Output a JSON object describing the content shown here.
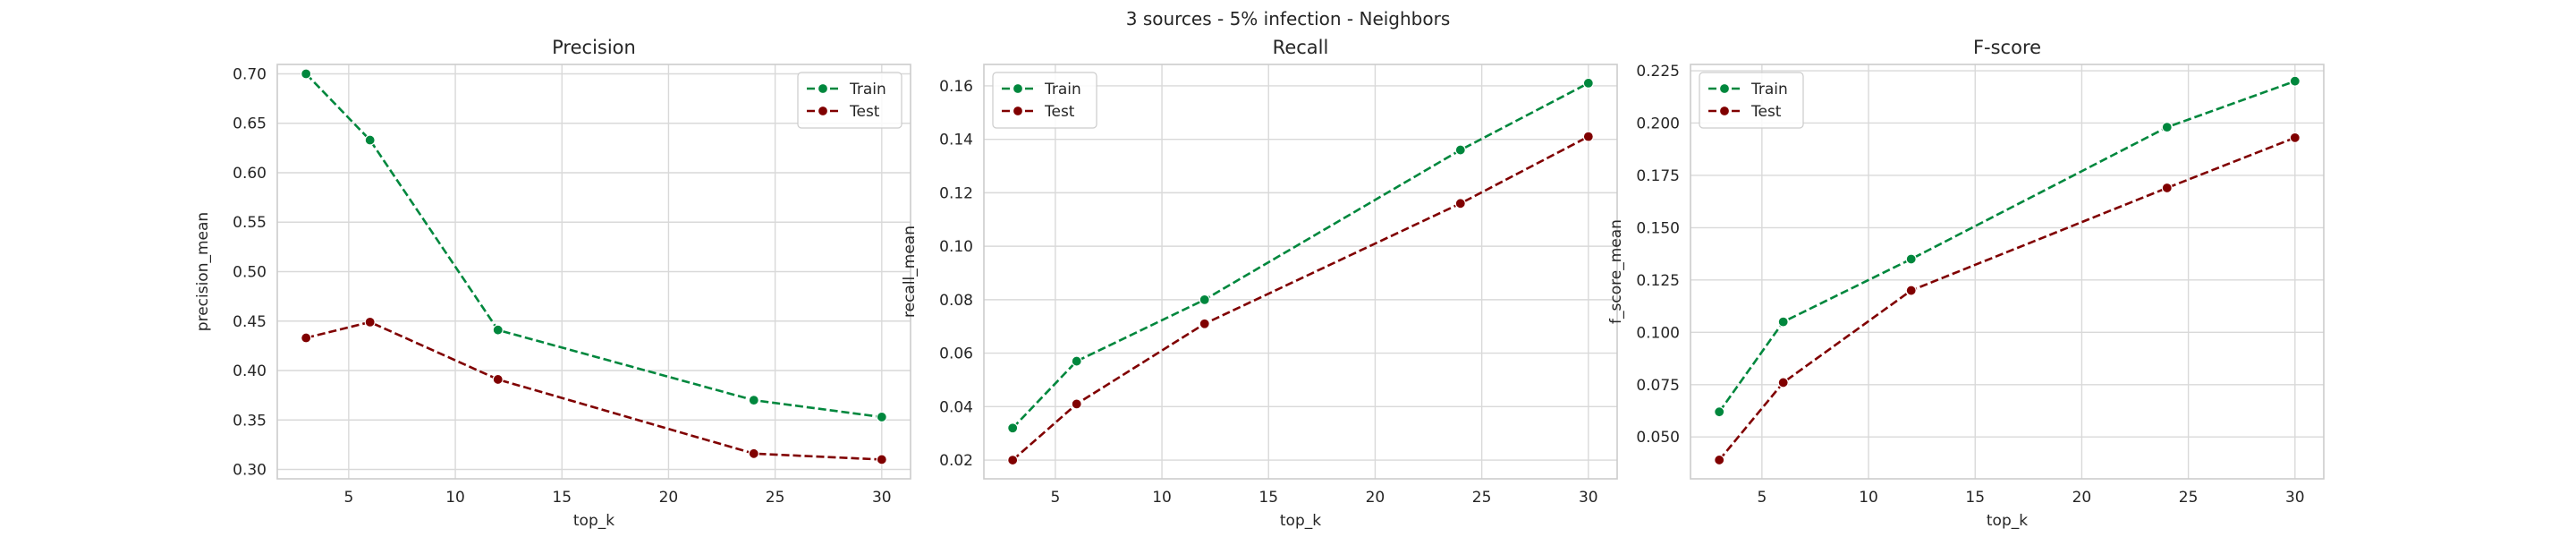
{
  "suptitle": "3 sources - 5% infection - Neighbors",
  "colors": {
    "train": "#00873d",
    "test": "#800000",
    "grid": "#d9d9d9",
    "frame": "#cccccc"
  },
  "chart_data": [
    {
      "type": "line",
      "title": "Precision",
      "xlabel": "top_k",
      "ylabel": "precision_mean",
      "x": [
        3,
        6,
        12,
        24,
        30
      ],
      "xlim": [
        1.65,
        31.35
      ],
      "ylim": [
        0.2905,
        0.7095
      ],
      "xticks": [
        5,
        10,
        15,
        20,
        25,
        30
      ],
      "xtick_labels": [
        "5",
        "10",
        "15",
        "20",
        "25",
        "30"
      ],
      "yticks": [
        0.3,
        0.35,
        0.4,
        0.45,
        0.5,
        0.55,
        0.6,
        0.65,
        0.7
      ],
      "ytick_labels": [
        "0.30",
        "0.35",
        "0.40",
        "0.45",
        "0.50",
        "0.55",
        "0.60",
        "0.65",
        "0.70"
      ],
      "grid": true,
      "legend": "top-right",
      "series": [
        {
          "name": "Train",
          "color": "#00873d",
          "linestyle": "dashed",
          "marker": "circle",
          "values": [
            0.7,
            0.633,
            0.441,
            0.37,
            0.353
          ]
        },
        {
          "name": "Test",
          "color": "#800000",
          "linestyle": "dashed",
          "marker": "circle",
          "values": [
            0.433,
            0.449,
            0.391,
            0.316,
            0.31
          ]
        }
      ]
    },
    {
      "type": "line",
      "title": "Recall",
      "xlabel": "top_k",
      "ylabel": "recall_mean",
      "x": [
        3,
        6,
        12,
        24,
        30
      ],
      "xlim": [
        1.65,
        31.35
      ],
      "ylim": [
        0.013,
        0.168
      ],
      "xticks": [
        5,
        10,
        15,
        20,
        25,
        30
      ],
      "xtick_labels": [
        "5",
        "10",
        "15",
        "20",
        "25",
        "30"
      ],
      "yticks": [
        0.02,
        0.04,
        0.06,
        0.08,
        0.1,
        0.12,
        0.14,
        0.16
      ],
      "ytick_labels": [
        "0.02",
        "0.04",
        "0.06",
        "0.08",
        "0.10",
        "0.12",
        "0.14",
        "0.16"
      ],
      "grid": true,
      "legend": "top-left",
      "series": [
        {
          "name": "Train",
          "color": "#00873d",
          "linestyle": "dashed",
          "marker": "circle",
          "values": [
            0.032,
            0.057,
            0.08,
            0.136,
            0.161
          ]
        },
        {
          "name": "Test",
          "color": "#800000",
          "linestyle": "dashed",
          "marker": "circle",
          "values": [
            0.02,
            0.041,
            0.071,
            0.116,
            0.141
          ]
        }
      ]
    },
    {
      "type": "line",
      "title": "F-score",
      "xlabel": "top_k",
      "ylabel": "f_score_mean",
      "x": [
        3,
        6,
        12,
        24,
        30
      ],
      "xlim": [
        1.65,
        31.35
      ],
      "ylim": [
        0.03,
        0.228
      ],
      "xticks": [
        5,
        10,
        15,
        20,
        25,
        30
      ],
      "xtick_labels": [
        "5",
        "10",
        "15",
        "20",
        "25",
        "30"
      ],
      "yticks": [
        0.05,
        0.075,
        0.1,
        0.125,
        0.15,
        0.175,
        0.2,
        0.225
      ],
      "ytick_labels": [
        "0.050",
        "0.075",
        "0.100",
        "0.125",
        "0.150",
        "0.175",
        "0.200",
        "0.225"
      ],
      "grid": true,
      "legend": "top-left",
      "series": [
        {
          "name": "Train",
          "color": "#00873d",
          "linestyle": "dashed",
          "marker": "circle",
          "values": [
            0.062,
            0.105,
            0.135,
            0.198,
            0.22
          ]
        },
        {
          "name": "Test",
          "color": "#800000",
          "linestyle": "dashed",
          "marker": "circle",
          "values": [
            0.039,
            0.076,
            0.12,
            0.169,
            0.193
          ]
        }
      ]
    }
  ]
}
